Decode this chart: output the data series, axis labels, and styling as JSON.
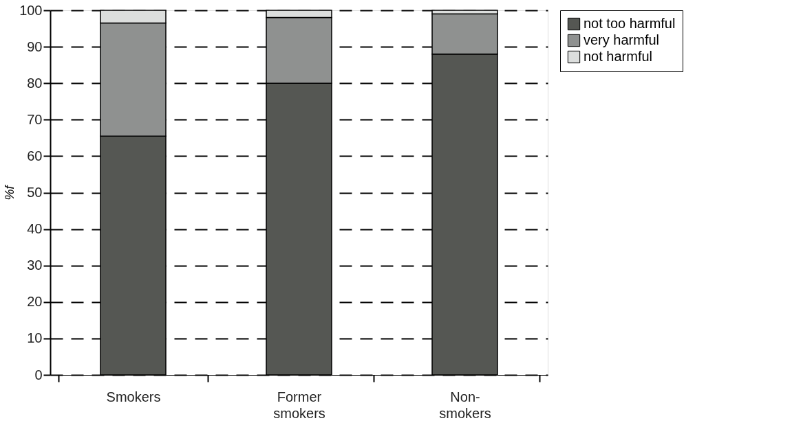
{
  "chart_data": {
    "type": "bar",
    "stacked": true,
    "ylabel": "%f",
    "categories": [
      "Smokers",
      "Former\nsmokers",
      "Non-\nsmokers"
    ],
    "series": [
      {
        "name": "not too harmful",
        "color": "#555753",
        "values": [
          65.5,
          80,
          88
        ]
      },
      {
        "name": "very harmful",
        "color": "#8f9190",
        "values": [
          31,
          18,
          11
        ]
      },
      {
        "name": "not harmful",
        "color": "#dcdedd",
        "values": [
          3.5,
          2,
          1
        ]
      }
    ],
    "ylim": [
      0,
      100
    ],
    "yticks": [
      0,
      10,
      20,
      30,
      40,
      50,
      60,
      70,
      80,
      90,
      100
    ],
    "grid": "y",
    "legend": "right"
  }
}
